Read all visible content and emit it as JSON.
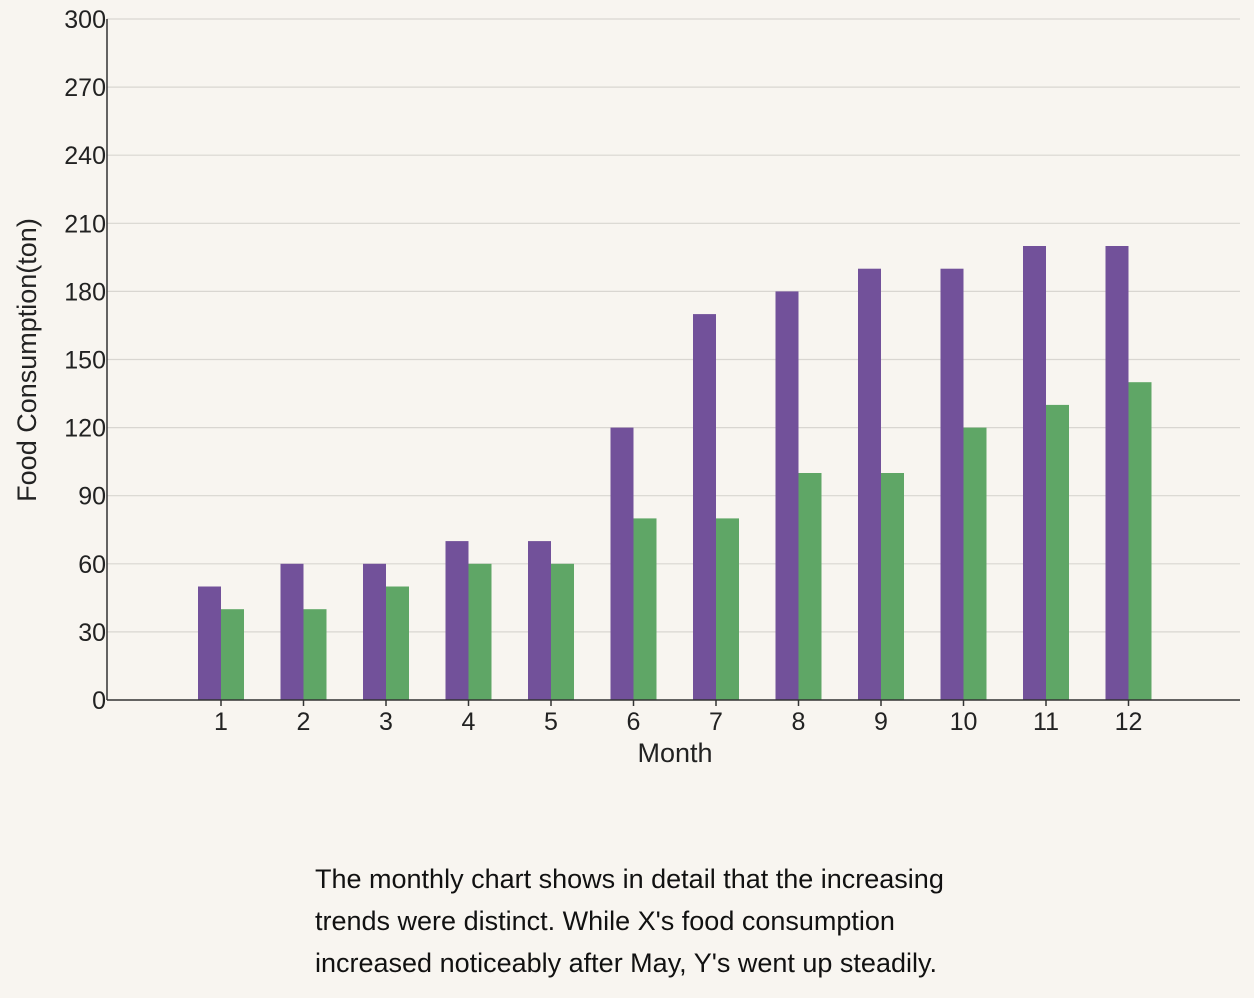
{
  "chart_data": {
    "type": "bar",
    "title": "",
    "xlabel": "Month",
    "ylabel": "Food Consumption(ton)",
    "categories": [
      "1",
      "2",
      "3",
      "4",
      "5",
      "6",
      "7",
      "8",
      "9",
      "10",
      "11",
      "12"
    ],
    "series": [
      {
        "color": "#72519a",
        "values": [
          50,
          60,
          60,
          70,
          70,
          120,
          170,
          180,
          190,
          190,
          200,
          200
        ]
      },
      {
        "color": "#5fa666",
        "values": [
          40,
          40,
          50,
          60,
          60,
          80,
          80,
          100,
          100,
          120,
          130,
          140
        ]
      }
    ],
    "ylim": [
      0,
      300
    ],
    "yticks": [
      0,
      30,
      60,
      90,
      120,
      150,
      180,
      210,
      240,
      270,
      300
    ],
    "grid": true,
    "legend": "none"
  },
  "caption": "The monthly chart shows in detail that the increasing trends were distinct. While X's food consumption increased noticeably after May, Y's went up steadily."
}
